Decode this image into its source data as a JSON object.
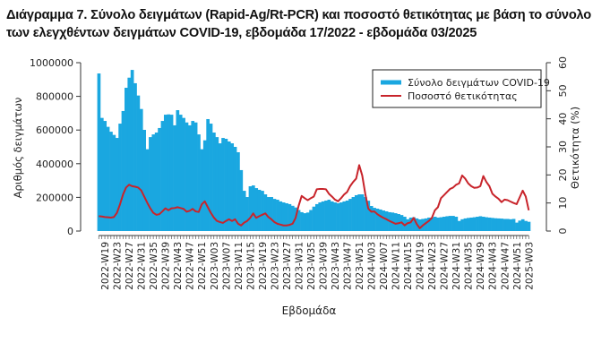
{
  "chart_data": {
    "type": "bar",
    "title_line1": "Διάγραμμα 7. Σύνολο δειγμάτων (Rapid-Ag/Rt-PCR) και ποσοστό θετικότητας με βάση το σύνολο",
    "title_line2": "των ελεγχθέντων δειγμάτων COVID-19, εβδομάδα 17/2022 - εβδομάδα 03/2025",
    "xlabel": "Εβδομάδα",
    "ylabel": "Αριθμός δειγμάτων",
    "y2label": "Θετικότητα (%)",
    "ylim": [
      0,
      1000000
    ],
    "y2lim": [
      0,
      60
    ],
    "y_ticks": [
      "0",
      "200000",
      "400000",
      "600000",
      "800000",
      "1000000"
    ],
    "y2_ticks": [
      "0",
      "10",
      "20",
      "30",
      "40",
      "50",
      "60"
    ],
    "first_week": "2022-W17",
    "last_week": "2025-W03",
    "x_tick_labels": [
      "2022-W19",
      "2022-W23",
      "2022-W27",
      "2022-W31",
      "2022-W35",
      "2022-W39",
      "2022-W43",
      "2022-W47",
      "2022-W51",
      "2023-W03",
      "2023-W07",
      "2023-W11",
      "2023-W15",
      "2023-W19",
      "2023-W23",
      "2023-W27",
      "2023-W31",
      "2023-W35",
      "2023-W39",
      "2023-W43",
      "2023-W47",
      "2023-W51",
      "2024-W03",
      "2024-W07",
      "2024-W11",
      "2024-W15",
      "2024-W19",
      "2024-W23",
      "2024-W27",
      "2024-W31",
      "2024-W35",
      "2024-W39",
      "2024-W43",
      "2024-W47",
      "2024-W51",
      "2025-W03"
    ],
    "legend_position": "top-right",
    "series": [
      {
        "name": "Σύνολο δειγμάτων COVID-19",
        "type": "bar",
        "axis": "left",
        "color": "#1AA7E0",
        "values": [
          936000,
          672000,
          654000,
          619000,
          590000,
          571000,
          553000,
          638000,
          713000,
          851000,
          911000,
          957000,
          878000,
          805000,
          725000,
          601000,
          486000,
          558000,
          574000,
          585000,
          612000,
          654000,
          691000,
          693000,
          691000,
          628000,
          718000,
          691000,
          672000,
          645000,
          628000,
          654000,
          645000,
          574000,
          486000,
          539000,
          665000,
          638000,
          585000,
          558000,
          521000,
          553000,
          548000,
          532000,
          521000,
          500000,
          468000,
          362000,
          239000,
          202000,
          266000,
          271000,
          255000,
          245000,
          239000,
          218000,
          202000,
          202000,
          191000,
          186000,
          176000,
          170000,
          165000,
          160000,
          150000,
          140000,
          125000,
          112000,
          106000,
          110000,
          125000,
          145000,
          160000,
          170000,
          176000,
          181000,
          186000,
          176000,
          170000,
          165000,
          170000,
          176000,
          181000,
          191000,
          202000,
          213000,
          218000,
          218000,
          202000,
          180000,
          149000,
          138000,
          133000,
          128000,
          122000,
          117000,
          112000,
          110000,
          106000,
          101000,
          95000,
          85000,
          70000,
          80000,
          82000,
          75000,
          69000,
          72000,
          75000,
          80000,
          80000,
          85000,
          80000,
          82000,
          85000,
          88000,
          90000,
          90000,
          85000,
          60000,
          70000,
          75000,
          78000,
          80000,
          82000,
          85000,
          88000,
          85000,
          82000,
          80000,
          78000,
          76000,
          75000,
          74000,
          72000,
          72000,
          70000,
          72000,
          50000,
          62000,
          70000,
          60000,
          55000
        ]
      },
      {
        "name": "Ποσοστό θετικότητας",
        "type": "line",
        "axis": "right",
        "color": "#C8242B",
        "values": [
          5.3,
          5.2,
          5.0,
          4.9,
          4.8,
          5.0,
          6.5,
          9.5,
          13,
          15.5,
          16.5,
          16.0,
          15.8,
          15.5,
          14.5,
          12.3,
          10.1,
          8.1,
          6.5,
          5.8,
          6.0,
          7.0,
          8.1,
          7.4,
          8.1,
          8.2,
          8.5,
          8.2,
          7.9,
          6.9,
          7.2,
          7.9,
          7.0,
          6.8,
          9.5,
          10.6,
          8.5,
          6.5,
          4.8,
          3.6,
          3.2,
          2.9,
          3.6,
          4.2,
          3.6,
          4.2,
          2.6,
          2.0,
          3.0,
          3.6,
          4.7,
          6.3,
          4.7,
          5.3,
          5.8,
          6.3,
          5.0,
          4.2,
          3.2,
          2.6,
          2.3,
          2.0,
          2.0,
          2.2,
          2.6,
          4.7,
          9.0,
          12.5,
          11.7,
          11.0,
          11.7,
          12.3,
          14.9,
          15.0,
          15.0,
          14.9,
          13.3,
          12.3,
          11.2,
          10.6,
          11.7,
          13.0,
          13.9,
          16.0,
          17.5,
          18.7,
          23.5,
          19.8,
          13.3,
          8.0,
          6.9,
          7.0,
          6.0,
          5.3,
          4.7,
          4.2,
          3.6,
          3.1,
          2.6,
          2.8,
          3.1,
          2.0,
          2.8,
          3.1,
          4.7,
          2.5,
          1.0,
          2.0,
          2.8,
          3.6,
          4.7,
          7.4,
          8.5,
          11.7,
          12.8,
          13.9,
          15.0,
          15.5,
          16.5,
          17.0,
          19.8,
          18.7,
          17.0,
          16.0,
          15.4,
          15.5,
          16.0,
          19.6,
          17.5,
          16.0,
          13.3,
          12.3,
          11.5,
          10.3,
          11.2,
          11.0,
          10.5,
          10.0,
          9.6,
          12.0,
          14.4,
          12.3,
          7.4
        ]
      }
    ]
  }
}
